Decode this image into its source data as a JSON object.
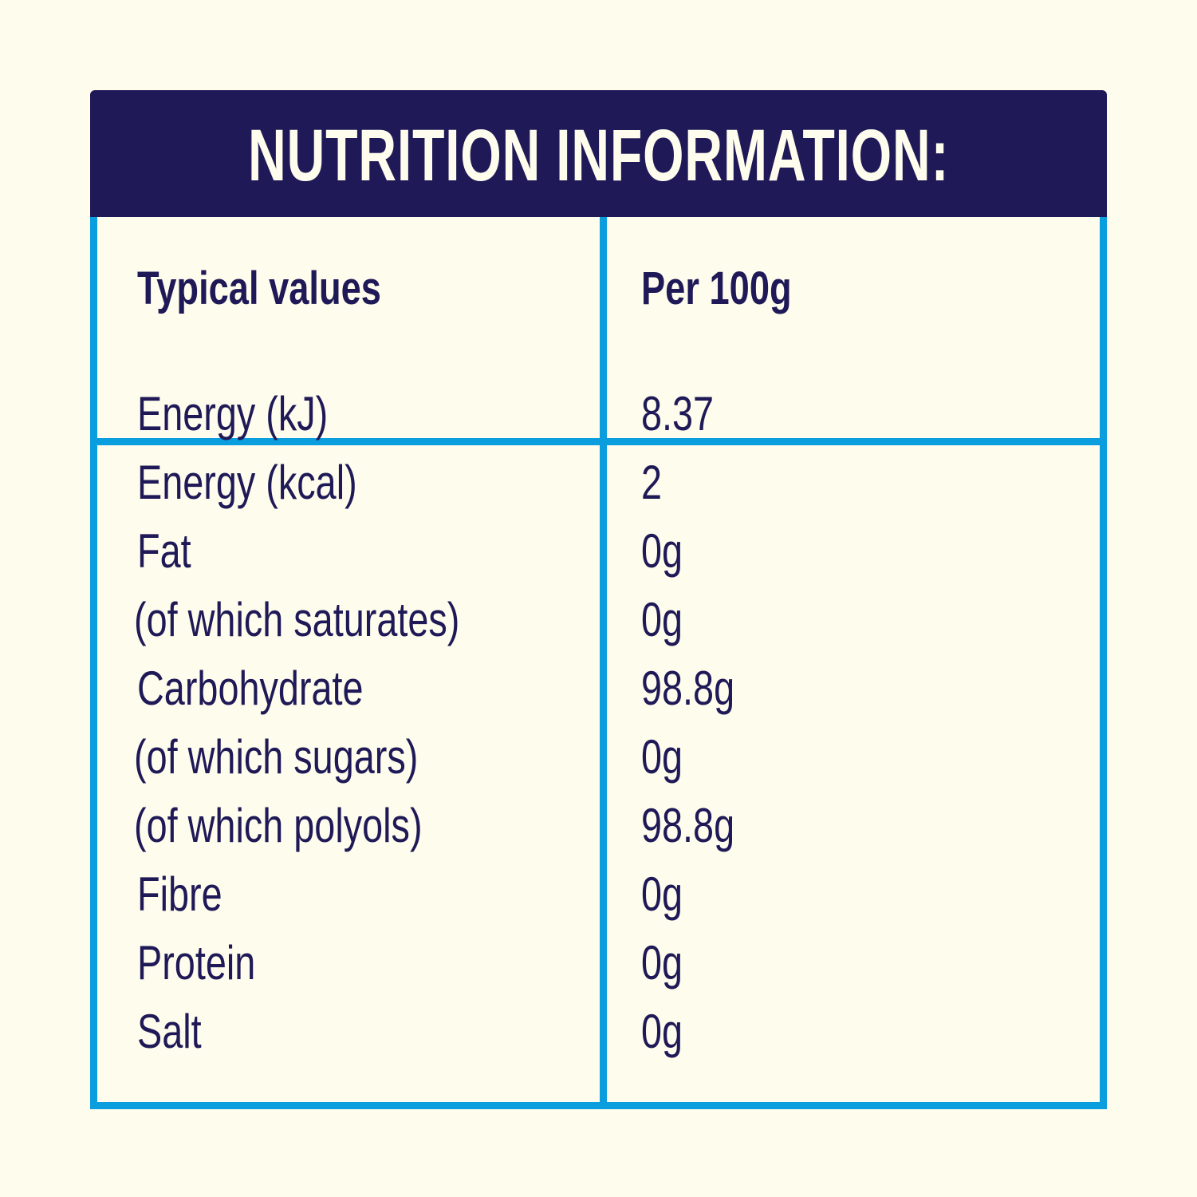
{
  "title": "NUTRITION INFORMATION:",
  "header": {
    "left": "Typical values",
    "right": "Per 100g"
  },
  "rows": [
    {
      "label": "Energy (kJ)",
      "value": "8.37"
    },
    {
      "label": "Energy (kcal)",
      "value": "2"
    },
    {
      "label": "Fat",
      "value": "0g"
    },
    {
      "label": "(of which saturates)",
      "value": "0g"
    },
    {
      "label": "Carbohydrate",
      "value": "98.8g"
    },
    {
      "label": "(of which sugars)",
      "value": "0g"
    },
    {
      "label": "(of which polyols)",
      "value": "98.8g"
    },
    {
      "label": "Fibre",
      "value": "0g"
    },
    {
      "label": "Protein",
      "value": "0g"
    },
    {
      "label": "Salt",
      "value": "0g"
    }
  ],
  "colors": {
    "background": "#fefcec",
    "title_bar": "#1f1a57",
    "border": "#0a9ede",
    "text": "#1f1a57"
  }
}
